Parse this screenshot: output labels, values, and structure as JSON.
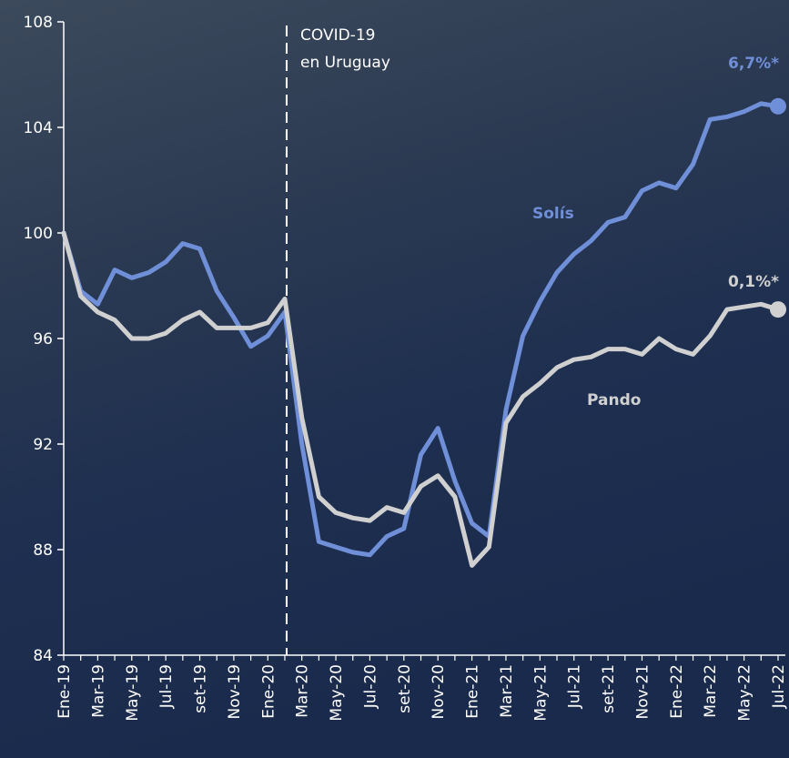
{
  "chart_data": {
    "type": "line",
    "categories": [
      "Ene-19",
      null,
      "Mar-19",
      null,
      "May-19",
      null,
      "Jul-19",
      null,
      "set-19",
      null,
      "Nov-19",
      null,
      "Ene-20",
      null,
      "Mar-20",
      null,
      "May-20",
      null,
      "Jul-20",
      null,
      "set-20",
      null,
      "Nov-20",
      null,
      "Ene-21",
      null,
      "Mar-21",
      null,
      "May-21",
      null,
      "Jul-21",
      null,
      "set-21",
      null,
      "Nov-21",
      null,
      "Ene-22",
      null,
      "Mar-22",
      null,
      "May-22",
      null,
      "Jul-22"
    ],
    "series": [
      {
        "name": "Solís",
        "color": "#6f8fd8",
        "end_label": "6,7%*",
        "values": [
          100.0,
          97.8,
          97.3,
          98.6,
          98.3,
          98.5,
          98.9,
          99.6,
          99.4,
          97.8,
          96.8,
          95.7,
          96.1,
          97.0,
          92.0,
          88.3,
          88.1,
          87.9,
          87.8,
          88.5,
          88.8,
          91.6,
          92.6,
          90.6,
          89.0,
          88.5,
          93.3,
          96.1,
          97.4,
          98.5,
          99.2,
          99.7,
          100.4,
          100.6,
          101.6,
          101.9,
          101.7,
          102.6,
          104.3,
          104.4,
          104.6,
          104.9,
          104.8
        ]
      },
      {
        "name": "Pando",
        "color": "#d0d0d0",
        "end_label": "0,1%*",
        "values": [
          100.0,
          97.6,
          97.0,
          96.7,
          96.0,
          96.0,
          96.2,
          96.7,
          97.0,
          96.4,
          96.4,
          96.4,
          96.6,
          97.5,
          93.0,
          90.0,
          89.4,
          89.2,
          89.1,
          89.6,
          89.4,
          90.4,
          90.8,
          90.0,
          87.4,
          88.1,
          92.8,
          93.8,
          94.3,
          94.9,
          95.2,
          95.3,
          95.6,
          95.6,
          95.4,
          96.0,
          95.6,
          95.4,
          96.1,
          97.1,
          97.2,
          97.3,
          97.1
        ]
      }
    ],
    "annotation": [
      "COVID-19",
      "en Uruguay"
    ],
    "ylim": [
      84,
      108
    ],
    "yticks": [
      84,
      88,
      92,
      96,
      100,
      104,
      108
    ]
  }
}
